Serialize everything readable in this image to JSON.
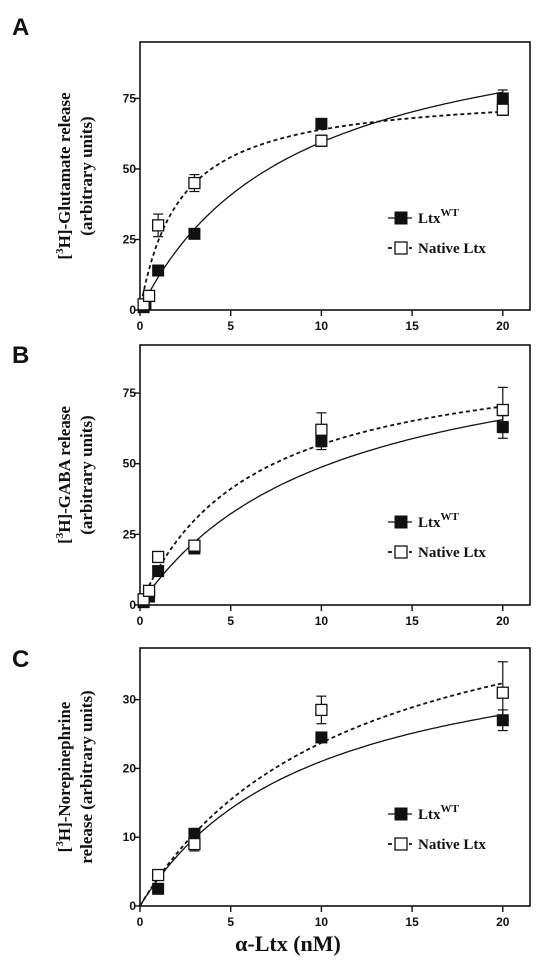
{
  "x_axis_label": "α-Ltx (nM)",
  "chart_data": [
    {
      "type": "scatter",
      "panel": "A",
      "ylabel_lines": [
        "[3H]-Glutamate release",
        "(arbitrary units)"
      ],
      "xlim": [
        0,
        21.5
      ],
      "ylim": [
        0,
        95
      ],
      "x_ticks": [
        0,
        5,
        10,
        15,
        20
      ],
      "y_ticks": [
        0,
        25,
        50,
        75
      ],
      "series": [
        {
          "name": "LtxWT",
          "marker": "filled-square",
          "fit_line": "solid",
          "fit": {
            "vmax": 110,
            "k": 8.5
          },
          "x": [
            0.2,
            0.3,
            1,
            3,
            10,
            20
          ],
          "y": [
            1,
            2,
            14,
            27,
            66,
            75
          ],
          "yerr": [
            0,
            0,
            0,
            0,
            0,
            3
          ]
        },
        {
          "name": "Native Ltx",
          "marker": "open-square",
          "fit_line": "dashed",
          "fit": {
            "vmax": 78,
            "k": 2.2
          },
          "x": [
            0.2,
            0.5,
            1,
            3,
            10,
            20
          ],
          "y": [
            2,
            5,
            30,
            45,
            60,
            71
          ],
          "yerr": [
            0,
            0,
            4,
            3,
            2,
            2
          ]
        }
      ]
    },
    {
      "type": "scatter",
      "panel": "B",
      "ylabel_lines": [
        "[3H]-GABA release",
        "(arbitrary units)"
      ],
      "xlim": [
        0,
        21.5
      ],
      "ylim": [
        0,
        92
      ],
      "x_ticks": [
        0,
        5,
        10,
        15,
        20
      ],
      "y_ticks": [
        0,
        25,
        50,
        75
      ],
      "series": [
        {
          "name": "LtxWT",
          "marker": "filled-square",
          "fit_line": "solid",
          "fit": {
            "vmax": 100,
            "k": 10.5
          },
          "x": [
            0.2,
            0.5,
            1,
            3,
            10,
            20
          ],
          "y": [
            1,
            3,
            12,
            20,
            58,
            63
          ],
          "yerr": [
            0,
            0,
            0,
            0,
            3,
            4
          ]
        },
        {
          "name": "Native Ltx",
          "marker": "open-square",
          "fit_line": "dashed",
          "fit": {
            "vmax": 92,
            "k": 6.2
          },
          "x": [
            0.2,
            0.5,
            1,
            3,
            10,
            20
          ],
          "y": [
            2,
            5,
            17,
            21,
            62,
            69
          ],
          "yerr": [
            0,
            0,
            0,
            0,
            6,
            8
          ]
        }
      ]
    },
    {
      "type": "scatter",
      "panel": "C",
      "ylabel_lines": [
        "[3H]-Norepinephrine",
        "release (arbitrary units)"
      ],
      "xlim": [
        0,
        21.5
      ],
      "ylim": [
        0,
        37.5
      ],
      "x_ticks": [
        0,
        5,
        10,
        15,
        20
      ],
      "y_ticks": [
        0,
        10,
        20,
        30
      ],
      "series": [
        {
          "name": "LtxWT",
          "marker": "filled-square",
          "fit_line": "solid",
          "fit": {
            "vmax": 41,
            "k": 9.5
          },
          "x": [
            1,
            3,
            10,
            20
          ],
          "y": [
            2.5,
            10.5,
            24.5,
            27
          ],
          "yerr": [
            0,
            0,
            0,
            1.5
          ]
        },
        {
          "name": "Native Ltx",
          "marker": "open-square",
          "fit_line": "dashed",
          "fit": {
            "vmax": 51,
            "k": 11.5
          },
          "x": [
            1,
            3,
            10,
            20
          ],
          "y": [
            4.5,
            9,
            28.5,
            31
          ],
          "yerr": [
            0,
            1,
            2,
            4.5
          ]
        }
      ]
    }
  ]
}
